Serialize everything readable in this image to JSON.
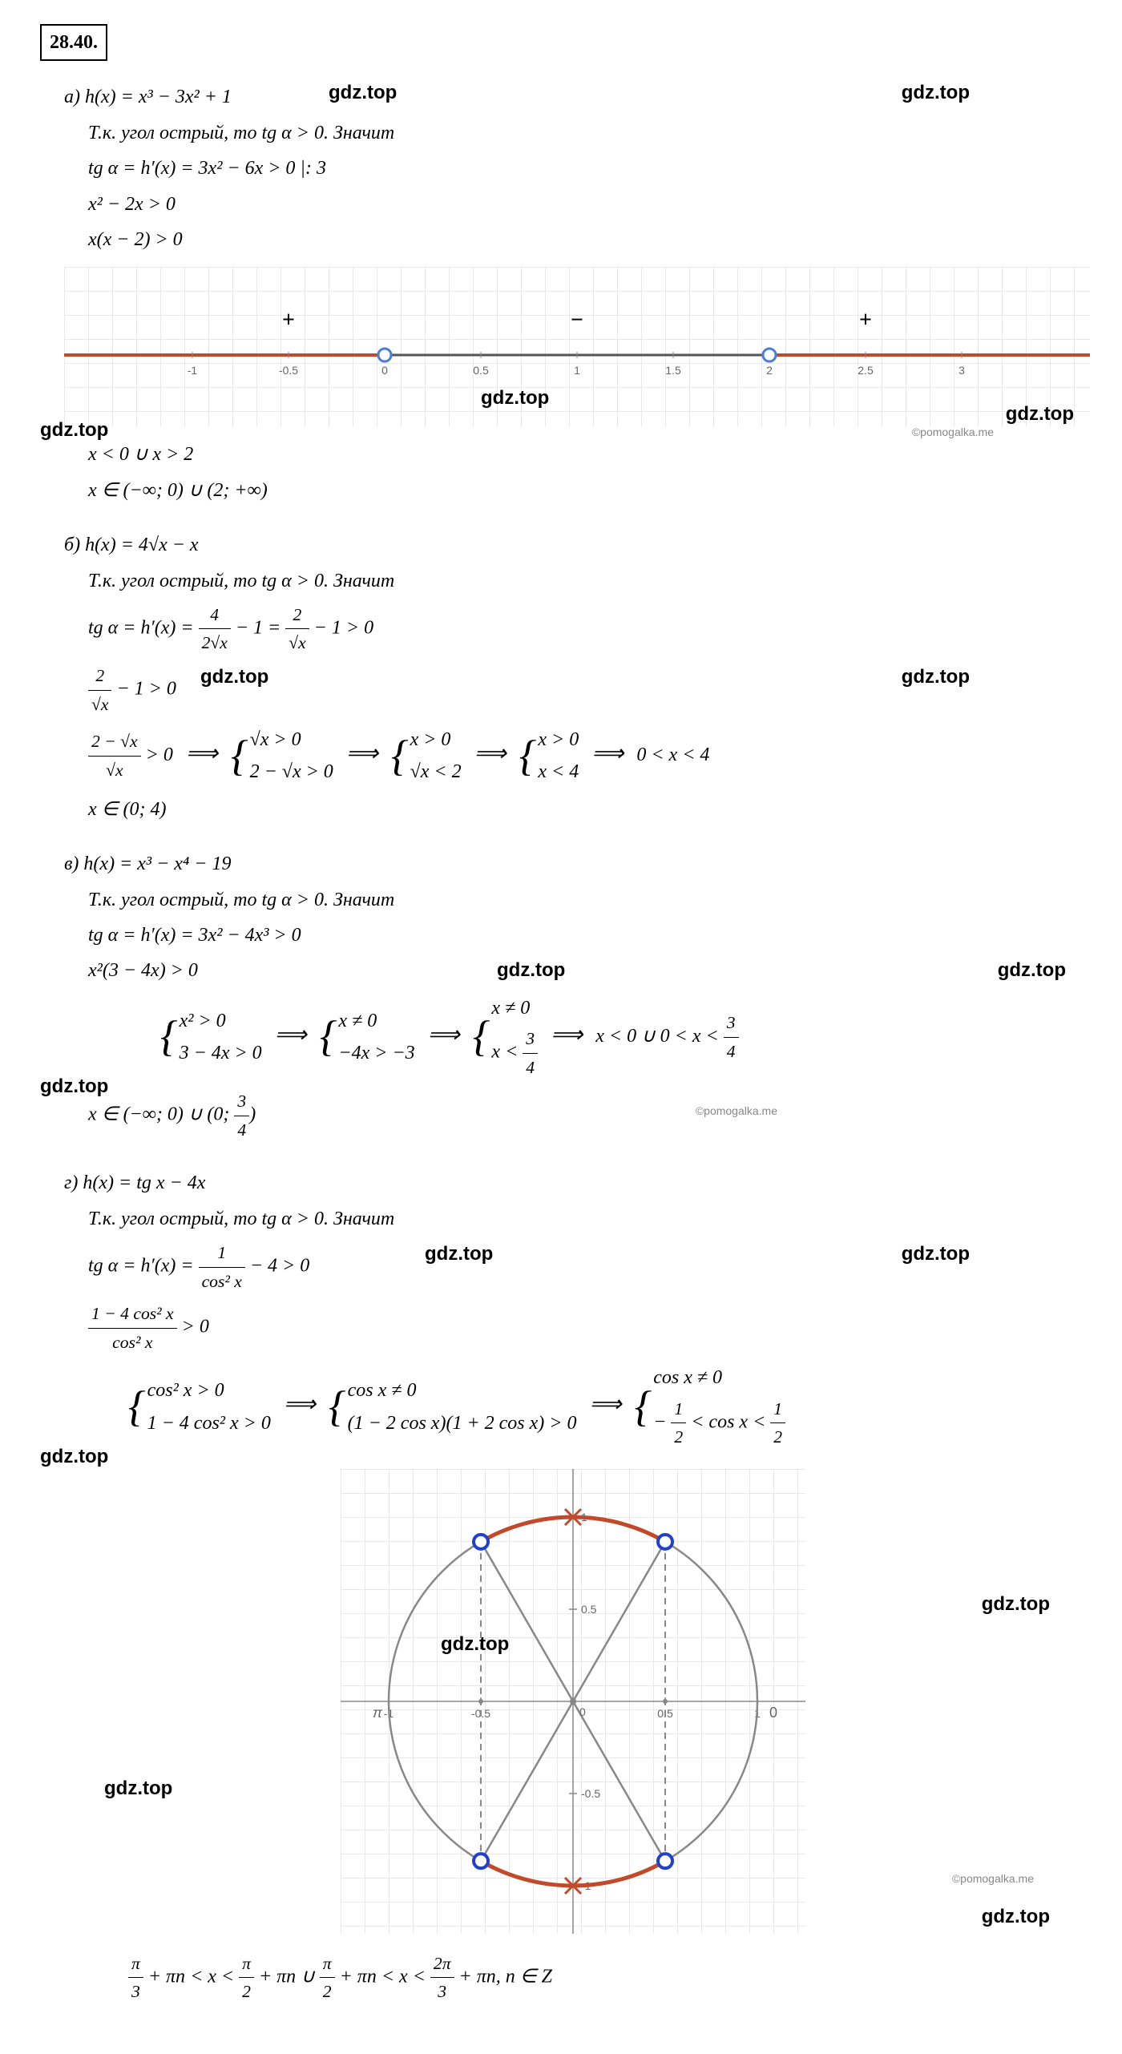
{
  "problem_number": "28.40.",
  "watermark_main": "gdz.top",
  "watermark_small": "©pomogalka.me",
  "sections": {
    "a": {
      "label": "а)",
      "func": "h(x) = x³ − 3x² + 1",
      "condition": "Т.к. угол острый, то tg α > 0. Значит",
      "deriv": "tg α = h′(x) = 3x² − 6x > 0   |: 3",
      "step1": "x² − 2x > 0",
      "step2": "x(x − 2) > 0",
      "result1": "x < 0 ∪ x > 2",
      "result2": "x ∈ (−∞; 0) ∪ (2; +∞)"
    },
    "b": {
      "label": "б)",
      "func": "h(x) = 4√x − x",
      "condition": "Т.к. угол острый, то tg α > 0. Значит",
      "result": "x ∈ (0; 4)"
    },
    "v": {
      "label": "в)",
      "func": "h(x) = x³ − x⁴ − 19",
      "condition": "Т.к. угол острый, то tg α > 0. Значит",
      "deriv": "tg α = h′(x) = 3x² − 4x³ > 0",
      "step1": "x²(3 − 4x) > 0"
    },
    "g": {
      "label": "г)",
      "func": "h(x) = tg x − 4x",
      "condition": "Т.к. угол острый, то tg α > 0. Значит"
    },
    "final_answer_g": "π/3 + πn < x < π/2 + πn ∪ π/2 + πn < x < 2π/3 + πn, n ∈ Z"
  },
  "number_line": {
    "xmin": -1.5,
    "xmax": 3.5,
    "ticks": [
      -1,
      -0.5,
      0,
      0.5,
      1,
      1.5,
      2,
      2.5,
      3
    ],
    "tick_labels": [
      "-1",
      "-0.5",
      "0",
      "0.5",
      "1",
      "1.5",
      "2",
      "2.5",
      "3"
    ],
    "line_color": "#c24a2a",
    "excluded_color": "#555555",
    "circle_color": "#4a7ed4",
    "circle_fill": "#ffffff",
    "open_points": [
      0,
      2
    ],
    "signs": [
      {
        "x": -0.5,
        "sign": "+"
      },
      {
        "x": 1,
        "sign": "−"
      },
      {
        "x": 2.5,
        "sign": "+"
      }
    ],
    "tick_fontsize": 14
  },
  "circle_chart": {
    "grid_color": "#e8e8e8",
    "axis_color": "#888888",
    "circle_color": "#888888",
    "arc_color": "#c24a2a",
    "point_color": "#2040d0",
    "point_fill": "#ffffff",
    "cross_color": "#c24a2a",
    "dash_color": "#888888",
    "ticks_x": [
      -1,
      -0.5,
      0,
      0.5,
      1
    ],
    "ticks_y": [
      -1,
      -0.5,
      0,
      0.5,
      1
    ],
    "tick_labels_x": [
      "-1",
      "-0.5",
      "0",
      "0.5",
      "1"
    ],
    "tick_labels_y": [
      "-1",
      "-0.5",
      "0.5",
      "1"
    ],
    "pi_label": "π",
    "zero_label": "0",
    "tick_fontsize": 14,
    "blue_points_deg": [
      60,
      120,
      240,
      300
    ],
    "cross_points_deg": [
      90,
      270
    ],
    "radius_lines_deg": [
      60,
      120,
      240,
      300
    ]
  },
  "colors": {
    "text": "#000000",
    "bg": "#ffffff"
  }
}
